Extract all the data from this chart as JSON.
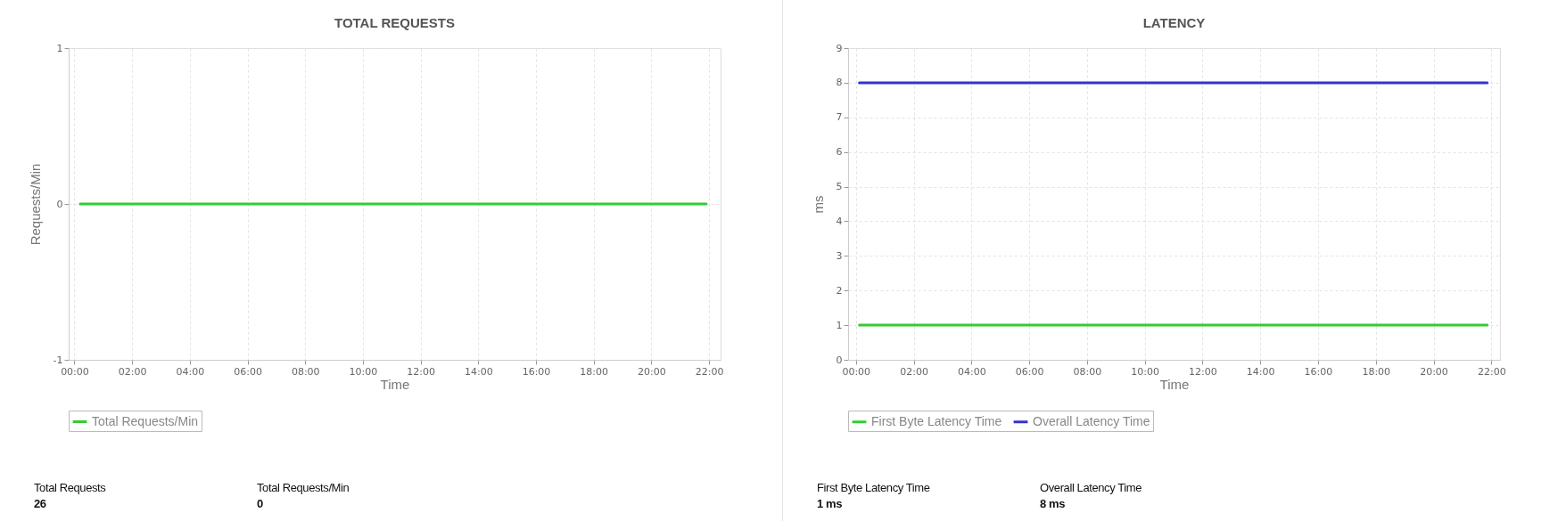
{
  "chart_data": [
    {
      "type": "line",
      "title": "TOTAL REQUESTS",
      "xlabel": "Time",
      "ylabel": "Requests/Min",
      "x": [
        0.2,
        21.9
      ],
      "series": [
        {
          "name": "Total Requests/Min",
          "color": "#33cc33",
          "values": [
            0,
            0
          ]
        }
      ],
      "xlim": [
        -0.2,
        22.4
      ],
      "xticks": [
        {
          "value": 0,
          "label": "00:00"
        },
        {
          "value": 2,
          "label": "02:00"
        },
        {
          "value": 4,
          "label": "04:00"
        },
        {
          "value": 6,
          "label": "06:00"
        },
        {
          "value": 8,
          "label": "08:00"
        },
        {
          "value": 10,
          "label": "10:00"
        },
        {
          "value": 12,
          "label": "12:00"
        },
        {
          "value": 14,
          "label": "14:00"
        },
        {
          "value": 16,
          "label": "16:00"
        },
        {
          "value": 18,
          "label": "18:00"
        },
        {
          "value": 20,
          "label": "20:00"
        },
        {
          "value": 22,
          "label": "22:00"
        }
      ],
      "ylim": [
        -1,
        1
      ],
      "yticks": [
        -1,
        0,
        1
      ],
      "grid": true,
      "legend": "bottom",
      "annotations": [
        "Total Requests",
        "26",
        "Total Requests/Min",
        "0"
      ]
    },
    {
      "type": "line",
      "title": "LATENCY",
      "xlabel": "Time",
      "ylabel": "ms",
      "x": [
        0.12,
        21.86
      ],
      "series": [
        {
          "name": "First Byte Latency Time",
          "color": "#33cc33",
          "values": [
            1,
            1
          ]
        },
        {
          "name": "Overall Latency Time",
          "color": "#3333cc",
          "values": [
            8,
            8
          ]
        }
      ],
      "xlim": [
        -0.27,
        22.3
      ],
      "xticks": [
        {
          "value": 0,
          "label": "00:00"
        },
        {
          "value": 2,
          "label": "02:00"
        },
        {
          "value": 4,
          "label": "04:00"
        },
        {
          "value": 6,
          "label": "06:00"
        },
        {
          "value": 8,
          "label": "08:00"
        },
        {
          "value": 10,
          "label": "10:00"
        },
        {
          "value": 12,
          "label": "12:00"
        },
        {
          "value": 14,
          "label": "14:00"
        },
        {
          "value": 16,
          "label": "16:00"
        },
        {
          "value": 18,
          "label": "18:00"
        },
        {
          "value": 20,
          "label": "20:00"
        },
        {
          "value": 22,
          "label": "22:00"
        }
      ],
      "ylim": [
        0,
        9
      ],
      "yticks": [
        0,
        1,
        2,
        3,
        4,
        5,
        6,
        7,
        8,
        9
      ],
      "grid": true,
      "legend": "bottom",
      "annotations": [
        "First Byte Latency Time",
        "1 ms",
        "Overall Latency Time",
        "8 ms"
      ]
    }
  ]
}
